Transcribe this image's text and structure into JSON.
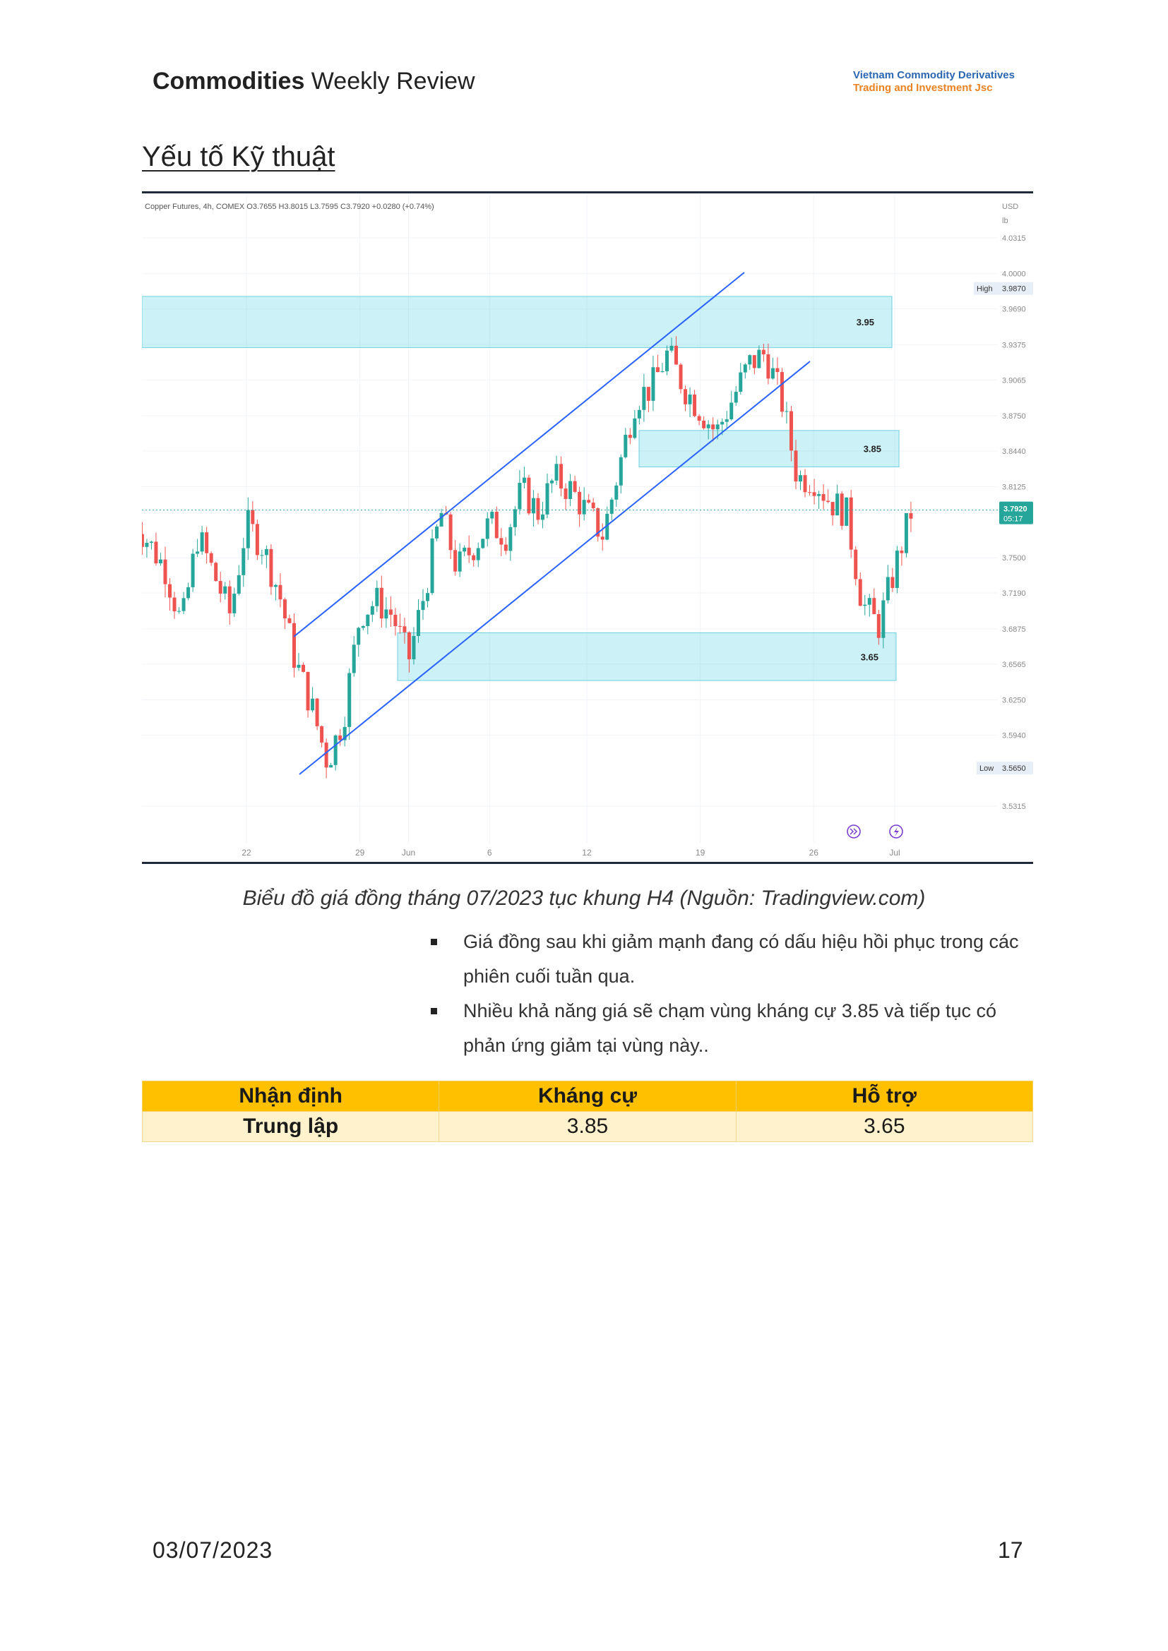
{
  "header": {
    "title_bold": "Commodities",
    "title_rest": " Weekly Review",
    "company_line1": "Vietnam Commodity Derivatives",
    "company_line2": "Trading and Investment Jsc"
  },
  "section_title": "Yếu tố Kỹ thuật",
  "chart": {
    "legend_text": "Copper Futures, 4h, COMEX O3.7655 H3.8015 L3.7595 C3.7920 +0.0280 (+0.74%)",
    "currency": "USD",
    "unit": "lb",
    "high_label": "High",
    "high_value": "3.9870",
    "low_label": "Low",
    "low_value": "3.5650",
    "last_price": "3.7920",
    "countdown": "05:17"
  },
  "chart_data": {
    "type": "candlestick",
    "instrument": "Copper Futures, 4h, COMEX",
    "ohlc_last": {
      "open": 3.7655,
      "high": 3.8015,
      "low": 3.7595,
      "close": 3.792,
      "change": 0.028,
      "change_pct": 0.74
    },
    "y_ticks": [
      4.0315,
      4.0,
      3.969,
      3.9375,
      3.9065,
      3.875,
      3.844,
      3.8125,
      3.75,
      3.719,
      3.6875,
      3.6565,
      3.625,
      3.594,
      3.5315
    ],
    "x_ticks": [
      "22",
      "29",
      "Jun",
      "6",
      "12",
      "19",
      "26",
      "Jul"
    ],
    "ylim": [
      3.52,
      4.05
    ],
    "zones": [
      {
        "label": "3.95",
        "low": 3.935,
        "high": 3.98
      },
      {
        "label": "3.85",
        "low": 3.83,
        "high": 3.862
      },
      {
        "label": "3.65",
        "low": 3.642,
        "high": 3.684
      }
    ],
    "channel": [
      {
        "name": "upper",
        "x": [
          "2023-05-25",
          "2023-06-22"
        ],
        "y": [
          3.68,
          4.0
        ]
      },
      {
        "name": "lower",
        "x": [
          "2023-05-25",
          "2023-06-26"
        ],
        "y": [
          3.558,
          3.915
        ]
      }
    ],
    "close_path": [
      [
        "2023-05-15",
        3.785
      ],
      [
        "2023-05-17",
        3.74
      ],
      [
        "2023-05-18",
        3.69
      ],
      [
        "2023-05-19",
        3.77
      ],
      [
        "2023-05-21",
        3.7
      ],
      [
        "2023-05-22",
        3.78
      ],
      [
        "2023-05-23",
        3.76
      ],
      [
        "2023-05-24",
        3.72
      ],
      [
        "2023-05-25",
        3.66
      ],
      [
        "2023-05-26",
        3.62
      ],
      [
        "2023-05-27",
        3.57
      ],
      [
        "2023-05-28",
        3.61
      ],
      [
        "2023-05-29",
        3.7
      ],
      [
        "2023-05-30",
        3.712
      ],
      [
        "2023-05-31",
        3.7
      ],
      [
        "2023-06-01",
        3.66
      ],
      [
        "2023-06-02",
        3.72
      ],
      [
        "2023-06-03",
        3.79
      ],
      [
        "2023-06-04",
        3.74
      ],
      [
        "2023-06-05",
        3.76
      ],
      [
        "2023-06-06",
        3.78
      ],
      [
        "2023-06-07",
        3.77
      ],
      [
        "2023-06-08",
        3.81
      ],
      [
        "2023-06-09",
        3.79
      ],
      [
        "2023-06-10",
        3.82
      ],
      [
        "2023-06-11",
        3.81
      ],
      [
        "2023-06-12",
        3.79
      ],
      [
        "2023-06-13",
        3.77
      ],
      [
        "2023-06-14",
        3.83
      ],
      [
        "2023-06-15",
        3.89
      ],
      [
        "2023-06-16",
        3.9
      ],
      [
        "2023-06-17",
        3.93
      ],
      [
        "2023-06-18",
        3.9
      ],
      [
        "2023-06-19",
        3.88
      ],
      [
        "2023-06-20",
        3.86
      ],
      [
        "2023-06-21",
        3.89
      ],
      [
        "2023-06-22",
        3.92
      ],
      [
        "2023-06-23",
        3.93
      ],
      [
        "2023-06-24",
        3.89
      ],
      [
        "2023-06-25",
        3.82
      ],
      [
        "2023-06-26",
        3.82
      ],
      [
        "2023-06-27",
        3.8
      ],
      [
        "2023-06-28",
        3.79
      ],
      [
        "2023-06-29",
        3.71
      ],
      [
        "2023-06-30",
        3.69
      ],
      [
        "2023-07-01",
        3.74
      ],
      [
        "2023-07-02",
        3.79
      ]
    ]
  },
  "caption": "Biểu đồ giá đồng tháng 07/2023 tục khung H4  (Nguồn: Tradingview.com)",
  "bullets": [
    "Giá đồng sau khi giảm mạnh đang có dấu hiệu hồi phục trong các phiên cuối tuần qua.",
    "Nhiều khả năng giá sẽ chạm vùng kháng cự 3.85 và tiếp tục có phản ứng giảm tại vùng này.."
  ],
  "table": {
    "headers": [
      "Nhận định",
      "Kháng cự",
      "Hỗ trợ"
    ],
    "row": [
      "Trung lập",
      "3.85",
      "3.65"
    ]
  },
  "footer": {
    "date": "03/07/2023",
    "page": "17"
  }
}
